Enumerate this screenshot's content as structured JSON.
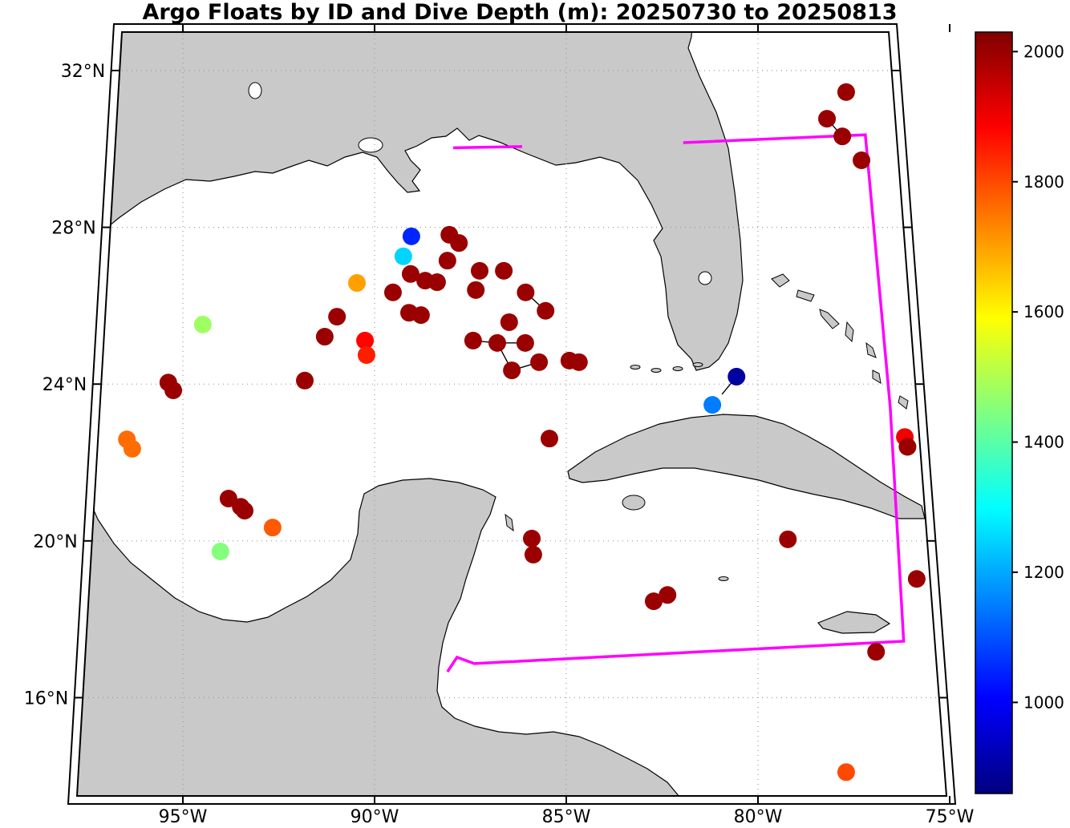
{
  "title": "Argo Floats by ID and Dive Depth (m): 20250730 to 20250813",
  "axes": {
    "lat_ticks": [
      {
        "label": "32°N",
        "value": 32
      },
      {
        "label": "28°N",
        "value": 28
      },
      {
        "label": "24°N",
        "value": 24
      },
      {
        "label": "20°N",
        "value": 20
      },
      {
        "label": "16°N",
        "value": 16
      }
    ],
    "lon_ticks": [
      {
        "label": "95°W",
        "value": -95
      },
      {
        "label": "90°W",
        "value": -90
      },
      {
        "label": "85°W",
        "value": -85
      },
      {
        "label": "80°W",
        "value": -80
      },
      {
        "label": "75°W",
        "value": -75
      }
    ]
  },
  "colorbar": {
    "vmin": 860,
    "vmax": 2030,
    "ticks": [
      1000,
      1200,
      1400,
      1600,
      1800,
      2000
    ]
  },
  "colors": {
    "land": "#c9c9c9",
    "ocean": "#ffffff",
    "coast": "#000000",
    "grid": "#999999",
    "region_outline": "#ff00ff",
    "track": "#000000"
  },
  "chart_data": {
    "type": "scatter",
    "title": "Argo Floats by ID and Dive Depth (m): 20250730 to 20250813",
    "colormap": "jet",
    "value_label": "Dive Depth (m)",
    "lon_range": [
      -97.6,
      -74.9
    ],
    "lat_range": [
      13.3,
      33.0
    ],
    "points": [
      [
        -77.7,
        31.45,
        2000
      ],
      [
        -78.2,
        30.77,
        2000
      ],
      [
        -77.8,
        30.32,
        2000
      ],
      [
        -77.3,
        29.71,
        2000
      ],
      [
        -89.04,
        27.77,
        1050
      ],
      [
        -88.05,
        27.81,
        2000
      ],
      [
        -87.8,
        27.6,
        2000
      ],
      [
        -89.25,
        27.26,
        1250
      ],
      [
        -88.1,
        27.15,
        2000
      ],
      [
        -90.46,
        26.58,
        1700
      ],
      [
        -89.06,
        26.81,
        2000
      ],
      [
        -88.68,
        26.64,
        2000
      ],
      [
        -87.26,
        26.89,
        2000
      ],
      [
        -86.63,
        26.89,
        2000
      ],
      [
        -89.52,
        26.34,
        2000
      ],
      [
        -88.37,
        26.6,
        2000
      ],
      [
        -87.36,
        26.4,
        2000
      ],
      [
        -86.06,
        26.34,
        2000
      ],
      [
        -85.54,
        25.87,
        2000
      ],
      [
        -90.98,
        25.72,
        2000
      ],
      [
        -89.1,
        25.82,
        2000
      ],
      [
        -88.79,
        25.76,
        2000
      ],
      [
        -86.49,
        25.58,
        2000
      ],
      [
        -94.48,
        25.52,
        1480
      ],
      [
        -91.3,
        25.21,
        2000
      ],
      [
        -90.25,
        25.11,
        1880
      ],
      [
        -90.21,
        24.74,
        1850
      ],
      [
        -87.43,
        25.11,
        2000
      ],
      [
        -86.8,
        25.05,
        2000
      ],
      [
        -86.07,
        25.05,
        2000
      ],
      [
        -86.42,
        24.35,
        2000
      ],
      [
        -85.71,
        24.56,
        2000
      ],
      [
        -84.92,
        24.6,
        2000
      ],
      [
        -84.67,
        24.56,
        2000
      ],
      [
        -91.82,
        24.09,
        2000
      ],
      [
        -95.38,
        24.04,
        2000
      ],
      [
        -95.25,
        23.84,
        2000
      ],
      [
        -80.56,
        24.19,
        900
      ],
      [
        -81.19,
        23.47,
        1150
      ],
      [
        -85.44,
        22.61,
        2000
      ],
      [
        -96.46,
        22.59,
        1760
      ],
      [
        -96.32,
        22.35,
        1760
      ],
      [
        -93.81,
        21.08,
        2000
      ],
      [
        -93.49,
        20.87,
        2000
      ],
      [
        -93.39,
        20.77,
        2000
      ],
      [
        -92.66,
        20.34,
        1780
      ],
      [
        -94.02,
        19.73,
        1450
      ],
      [
        -85.9,
        20.06,
        2000
      ],
      [
        -85.86,
        19.65,
        2000
      ],
      [
        -82.72,
        18.46,
        2000
      ],
      [
        -82.36,
        18.62,
        2000
      ],
      [
        -79.22,
        20.04,
        2000
      ],
      [
        -76.92,
        17.17,
        2000
      ],
      [
        -75.86,
        19.03,
        2000
      ],
      [
        -76.17,
        22.65,
        1900
      ],
      [
        -76.1,
        22.4,
        2000
      ],
      [
        -77.7,
        14.1,
        1800
      ]
    ],
    "tracks": [
      [
        [
          -78.2,
          30.77
        ],
        [
          -77.8,
          30.32
        ]
      ],
      [
        [
          -86.06,
          26.34
        ],
        [
          -85.54,
          25.87
        ]
      ],
      [
        [
          -87.43,
          25.11
        ],
        [
          -86.8,
          25.05
        ],
        [
          -86.07,
          25.05
        ]
      ],
      [
        [
          -86.8,
          25.05
        ],
        [
          -86.42,
          24.35
        ]
      ],
      [
        [
          -86.42,
          24.35
        ],
        [
          -85.71,
          24.56
        ]
      ],
      [
        [
          -80.56,
          24.19
        ],
        [
          -80.94,
          23.74
        ]
      ]
    ],
    "region": {
      "outline": [
        [
          -81.95,
          30.16
        ],
        [
          -77.2,
          30.36
        ],
        [
          -76.55,
          23.4
        ],
        [
          -76.2,
          17.44
        ],
        [
          -87.4,
          16.87
        ],
        [
          -87.85,
          17.03
        ],
        [
          -88.1,
          16.66
        ]
      ],
      "coast_segment": [
        [
          -87.95,
          30.03
        ],
        [
          -86.15,
          30.06
        ]
      ]
    }
  }
}
